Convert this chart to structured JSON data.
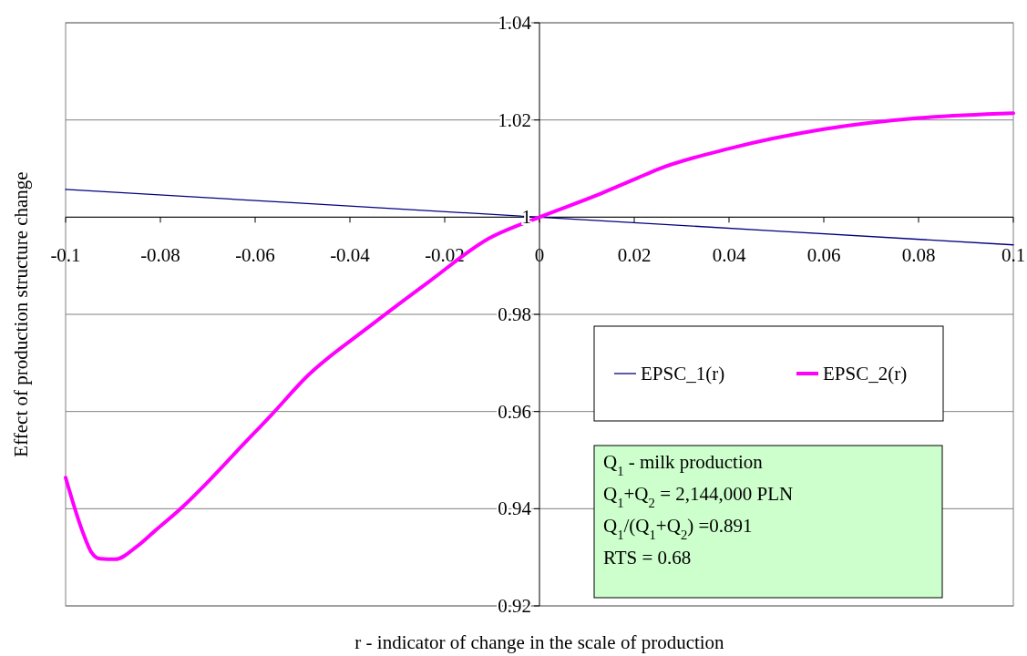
{
  "chart_data": {
    "type": "line",
    "xlabel": "r - indicator of change in the scale of production",
    "ylabel": "Effect of production structure change",
    "xlim": [
      -0.1,
      0.1
    ],
    "xticks": [
      -0.1,
      -0.08,
      -0.06,
      -0.04,
      -0.02,
      0,
      0.02,
      0.04,
      0.06,
      0.08,
      0.1
    ],
    "ylim": [
      0.92,
      1.04
    ],
    "yticks": [
      0.92,
      0.94,
      0.96,
      0.98,
      1,
      1.02,
      1.04
    ],
    "grid": "y",
    "legend": "right",
    "series": [
      {
        "name": "EPSC_1(r)",
        "color": "#000080",
        "x": [
          -0.1,
          0,
          0.1
        ],
        "values": [
          1.0057,
          1.0,
          0.9943
        ]
      },
      {
        "name": "EPSC_2(r)",
        "color": "#ff00ff",
        "x": [
          -0.1,
          -0.0962,
          -0.0946,
          -0.0927,
          -0.0895,
          -0.085,
          -0.0812,
          -0.0754,
          -0.0702,
          -0.0638,
          -0.0562,
          -0.0491,
          -0.0363,
          -0.0235,
          -0.0107,
          0,
          0.0118,
          0.0208,
          0.0246,
          0.04,
          0.06,
          0.08,
          0.1
        ],
        "values": [
          0.9464,
          0.9347,
          0.9311,
          0.9297,
          0.9296,
          0.9322,
          0.9354,
          0.9403,
          0.9453,
          0.9519,
          0.9597,
          0.9672,
          0.9772,
          0.9866,
          0.9956,
          1.0,
          1.0044,
          1.0081,
          1.0097,
          1.0141,
          1.0181,
          1.0204,
          1.0214
        ]
      }
    ],
    "annotations": [
      "Q$_{1}$ - milk production",
      "Q$_{1}$+Q$_{2}$ = 2,144,000 PLN",
      "Q$_{1}$/(Q$_{1}$+Q$_{2}$) =0.891",
      "RTS = 0.68"
    ]
  }
}
